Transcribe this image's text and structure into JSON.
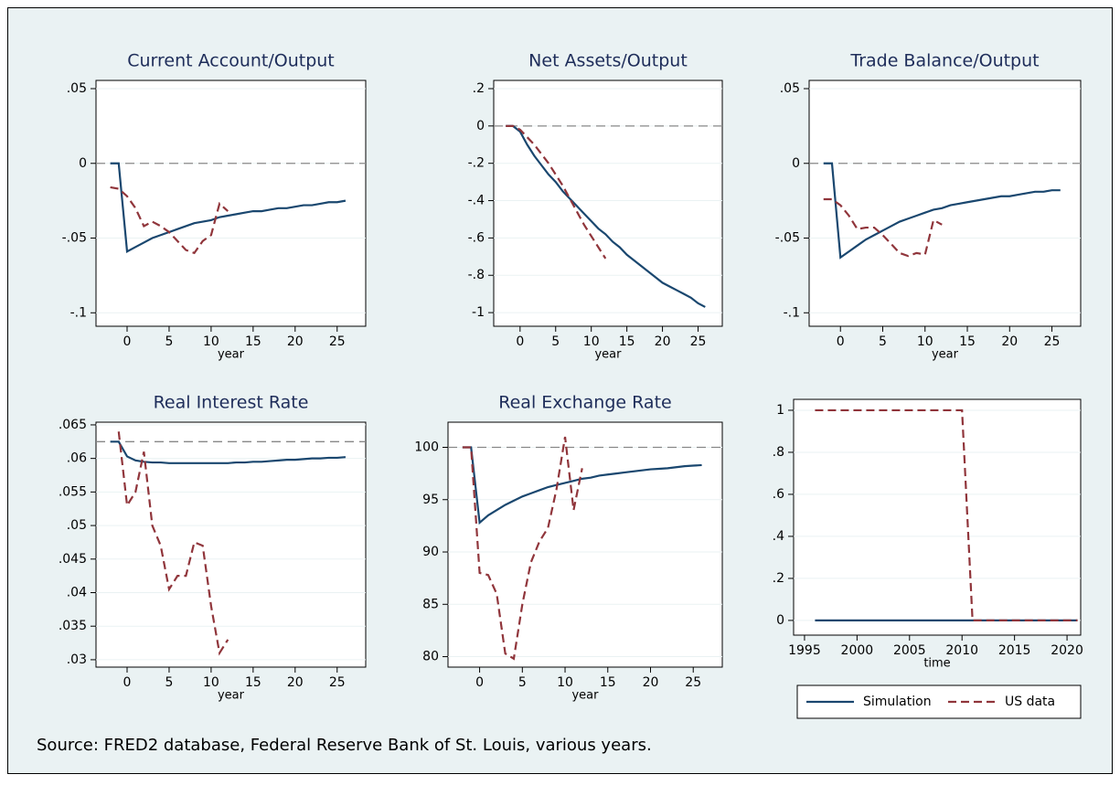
{
  "chart_data": [
    {
      "type": "line",
      "title": "Current Account/Output",
      "xlabel": "year",
      "x": [
        -2,
        -1,
        0,
        1,
        2,
        3,
        4,
        5,
        6,
        7,
        8,
        9,
        10,
        11,
        12,
        13,
        14,
        15,
        16,
        17,
        18,
        19,
        20,
        21,
        22,
        23,
        24,
        25,
        26
      ],
      "series": [
        {
          "name": "Simulation",
          "color": "#1a476f",
          "style": "solid",
          "values": [
            0,
            0,
            -0.059,
            -0.056,
            -0.053,
            -0.05,
            -0.048,
            -0.046,
            -0.044,
            -0.042,
            -0.04,
            -0.039,
            -0.038,
            -0.036,
            -0.035,
            -0.034,
            -0.033,
            -0.032,
            -0.032,
            -0.031,
            -0.03,
            -0.03,
            -0.029,
            -0.028,
            -0.028,
            -0.027,
            -0.026,
            -0.026,
            -0.025
          ]
        },
        {
          "name": "US data",
          "color": "#90353b",
          "style": "dashed",
          "values": [
            -0.016,
            -0.017,
            -0.022,
            -0.03,
            -0.042,
            -0.039,
            -0.042,
            -0.046,
            -0.052,
            -0.058,
            -0.06,
            -0.052,
            -0.048,
            -0.027,
            -0.032,
            null,
            null,
            null,
            null,
            null,
            null,
            null,
            null,
            null,
            null,
            null,
            null,
            null,
            null
          ]
        }
      ],
      "hline": 0,
      "grid": true,
      "xlim": [
        -3.7,
        28.4
      ],
      "xticks": [
        0,
        5,
        10,
        15,
        20,
        25
      ],
      "ylim": [
        -0.109,
        0.0555
      ],
      "yticks": [
        {
          "value": 0.05,
          "label": ".05"
        },
        0,
        {
          "value": -0.05,
          "label": "-.05"
        },
        {
          "value": -0.1,
          "label": "-.1"
        }
      ]
    },
    {
      "type": "line",
      "title": "Net Assets/Output",
      "xlabel": "year",
      "x": [
        -2,
        -1,
        0,
        1,
        2,
        3,
        4,
        5,
        6,
        7,
        8,
        9,
        10,
        11,
        12,
        13,
        14,
        15,
        16,
        17,
        18,
        19,
        20,
        21,
        22,
        23,
        24,
        25,
        26
      ],
      "series": [
        {
          "name": "Simulation",
          "color": "#1a476f",
          "style": "solid",
          "values": [
            0,
            0,
            -0.03,
            -0.1,
            -0.16,
            -0.21,
            -0.26,
            -0.3,
            -0.35,
            -0.39,
            -0.43,
            -0.47,
            -0.51,
            -0.55,
            -0.58,
            -0.62,
            -0.65,
            -0.69,
            -0.72,
            -0.75,
            -0.78,
            -0.81,
            -0.84,
            -0.86,
            -0.88,
            -0.9,
            -0.92,
            -0.95,
            -0.97
          ]
        },
        {
          "name": "US data",
          "color": "#90353b",
          "style": "dashed",
          "values": [
            0,
            0,
            -0.02,
            -0.06,
            -0.1,
            -0.15,
            -0.2,
            -0.26,
            -0.32,
            -0.39,
            -0.46,
            -0.53,
            -0.59,
            -0.65,
            -0.71,
            null,
            null,
            null,
            null,
            null,
            null,
            null,
            null,
            null,
            null,
            null,
            null,
            null,
            null
          ]
        }
      ],
      "hline": 0,
      "grid": true,
      "xlim": [
        -3.7,
        28.4
      ],
      "xticks": [
        0,
        5,
        10,
        15,
        20,
        25
      ],
      "ylim": [
        -1.073,
        0.244
      ],
      "yticks": [
        {
          "value": 0.2,
          "label": ".2"
        },
        0,
        {
          "value": -0.2,
          "label": "-.2"
        },
        {
          "value": -0.4,
          "label": "-.4"
        },
        {
          "value": -0.6,
          "label": "-.6"
        },
        {
          "value": -0.8,
          "label": "-.8"
        },
        -1
      ]
    },
    {
      "type": "line",
      "title": "Trade Balance/Output",
      "xlabel": "year",
      "x": [
        -2,
        -1,
        0,
        1,
        2,
        3,
        4,
        5,
        6,
        7,
        8,
        9,
        10,
        11,
        12,
        13,
        14,
        15,
        16,
        17,
        18,
        19,
        20,
        21,
        22,
        23,
        24,
        25,
        26
      ],
      "series": [
        {
          "name": "Simulation",
          "color": "#1a476f",
          "style": "solid",
          "values": [
            0,
            0,
            -0.063,
            -0.059,
            -0.055,
            -0.051,
            -0.048,
            -0.045,
            -0.042,
            -0.039,
            -0.037,
            -0.035,
            -0.033,
            -0.031,
            -0.03,
            -0.028,
            -0.027,
            -0.026,
            -0.025,
            -0.024,
            -0.023,
            -0.022,
            -0.022,
            -0.021,
            -0.02,
            -0.019,
            -0.019,
            -0.018,
            -0.018
          ]
        },
        {
          "name": "US data",
          "color": "#90353b",
          "style": "dashed",
          "values": [
            -0.024,
            -0.024,
            -0.028,
            -0.035,
            -0.044,
            -0.043,
            -0.043,
            -0.048,
            -0.054,
            -0.06,
            -0.062,
            -0.06,
            -0.061,
            -0.038,
            -0.041,
            null,
            null,
            null,
            null,
            null,
            null,
            null,
            null,
            null,
            null,
            null,
            null,
            null,
            null
          ]
        }
      ],
      "hline": 0,
      "grid": true,
      "xlim": [
        -3.7,
        28.4
      ],
      "xticks": [
        0,
        5,
        10,
        15,
        20,
        25
      ],
      "ylim": [
        -0.109,
        0.0555
      ],
      "yticks": [
        {
          "value": 0.05,
          "label": ".05"
        },
        0,
        {
          "value": -0.05,
          "label": "-.05"
        },
        {
          "value": -0.1,
          "label": "-.1"
        }
      ]
    },
    {
      "type": "line",
      "title": "Real Interest Rate",
      "xlabel": "year",
      "x": [
        -2,
        -1,
        0,
        1,
        2,
        3,
        4,
        5,
        6,
        7,
        8,
        9,
        10,
        11,
        12,
        13,
        14,
        15,
        16,
        17,
        18,
        19,
        20,
        21,
        22,
        23,
        24,
        25,
        26
      ],
      "series": [
        {
          "name": "Simulation",
          "color": "#1a476f",
          "style": "solid",
          "values": [
            0.0625,
            0.0625,
            0.0603,
            0.0597,
            0.0595,
            0.0594,
            0.0594,
            0.0593,
            0.0593,
            0.0593,
            0.0593,
            0.0593,
            0.0593,
            0.0593,
            0.0593,
            0.0594,
            0.0594,
            0.0595,
            0.0595,
            0.0596,
            0.0597,
            0.0598,
            0.0598,
            0.0599,
            0.06,
            0.06,
            0.0601,
            0.0601,
            0.0602
          ]
        },
        {
          "name": "US data",
          "color": "#90353b",
          "style": "dashed",
          "values": [
            null,
            0.064,
            0.053,
            0.055,
            0.061,
            0.05,
            0.047,
            0.0405,
            0.0425,
            0.0425,
            0.0475,
            0.047,
            0.038,
            0.031,
            0.033,
            null,
            null,
            null,
            null,
            null,
            null,
            null,
            null,
            null,
            null,
            null,
            null,
            null,
            null
          ]
        }
      ],
      "hline": 0.0625,
      "grid": true,
      "xlim": [
        -3.7,
        28.4
      ],
      "xticks": [
        0,
        5,
        10,
        15,
        20,
        25
      ],
      "ylim": [
        0.0289,
        0.0654
      ],
      "yticks": [
        {
          "value": 0.065,
          "label": ".065"
        },
        {
          "value": 0.06,
          "label": ".06"
        },
        {
          "value": 0.055,
          "label": ".055"
        },
        {
          "value": 0.05,
          "label": ".05"
        },
        {
          "value": 0.045,
          "label": ".045"
        },
        {
          "value": 0.04,
          "label": ".04"
        },
        {
          "value": 0.035,
          "label": ".035"
        },
        {
          "value": 0.03,
          "label": ".03"
        }
      ]
    },
    {
      "type": "line",
      "title": "Real Exchange Rate",
      "xlabel": "year",
      "x": [
        -2,
        -1,
        0,
        1,
        2,
        3,
        4,
        5,
        6,
        7,
        8,
        9,
        10,
        11,
        12,
        13,
        14,
        15,
        16,
        17,
        18,
        19,
        20,
        21,
        22,
        23,
        24,
        25,
        26
      ],
      "series": [
        {
          "name": "Simulation",
          "color": "#1a476f",
          "style": "solid",
          "values": [
            100,
            100,
            92.8,
            93.5,
            94,
            94.5,
            94.9,
            95.3,
            95.6,
            95.9,
            96.2,
            96.4,
            96.6,
            96.8,
            97,
            97.1,
            97.3,
            97.4,
            97.5,
            97.6,
            97.7,
            97.8,
            97.9,
            97.95,
            98,
            98.1,
            98.2,
            98.25,
            98.3
          ]
        },
        {
          "name": "US data",
          "color": "#90353b",
          "style": "dashed",
          "values": [
            100,
            100,
            88,
            87.8,
            86,
            80.3,
            79.8,
            85,
            89,
            91,
            92.3,
            96,
            101,
            94,
            98,
            null,
            null,
            null,
            null,
            null,
            null,
            null,
            null,
            null,
            null,
            null,
            null,
            null,
            null
          ]
        }
      ],
      "hline": 100,
      "grid": true,
      "xlim": [
        -3.7,
        28.4
      ],
      "xticks": [
        0,
        5,
        10,
        15,
        20,
        25
      ],
      "ylim": [
        79,
        102.4
      ],
      "yticks": [
        100,
        95,
        90,
        85,
        80
      ]
    },
    {
      "type": "line",
      "xlabel": "time",
      "x": [
        1996,
        1997,
        1998,
        1999,
        2000,
        2001,
        2002,
        2003,
        2004,
        2005,
        2006,
        2007,
        2008,
        2009,
        2010,
        2011,
        2012,
        2013,
        2014,
        2015,
        2016,
        2017,
        2018,
        2019,
        2020,
        2021
      ],
      "series": [
        {
          "name": "Simulation",
          "color": "#1a476f",
          "style": "solid",
          "values": [
            0,
            0,
            0,
            0,
            0,
            0,
            0,
            0,
            0,
            0,
            0,
            0,
            0,
            0,
            0,
            0,
            0,
            0,
            0,
            0,
            0,
            0,
            0,
            0,
            0,
            0
          ]
        },
        {
          "name": "US data",
          "color": "#90353b",
          "style": "dashed",
          "values": [
            1,
            1,
            1,
            1,
            1,
            1,
            1,
            1,
            1,
            1,
            1,
            1,
            1,
            1,
            1,
            0,
            0,
            0,
            0,
            0,
            0,
            0,
            0,
            0,
            0,
            0
          ]
        }
      ],
      "grid": true,
      "legend": "below",
      "xlim": [
        1993.96,
        2021.3
      ],
      "xticks": [
        1995,
        2000,
        2005,
        2010,
        2015,
        2020
      ],
      "ylim": [
        -0.07,
        1.052
      ],
      "yticks": [
        0,
        {
          "value": 0.2,
          "label": ".2"
        },
        {
          "value": 0.4,
          "label": ".4"
        },
        {
          "value": 0.6,
          "label": ".6"
        },
        {
          "value": 0.8,
          "label": ".8"
        },
        1
      ]
    }
  ],
  "note": "Source: FRED2 database, Federal Reserve Bank of St. Louis, various years."
}
